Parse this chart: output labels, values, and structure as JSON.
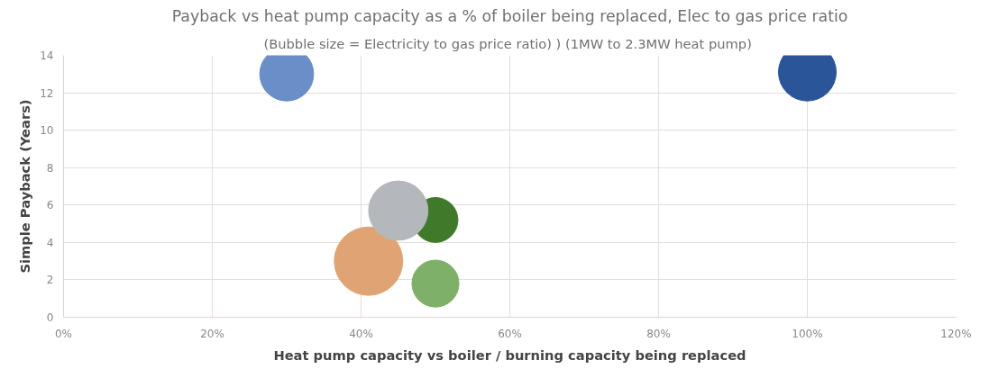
{
  "chart_data": {
    "type": "bubble",
    "title": "Payback vs heat pump capacity as a % of boiler being replaced, Elec to gas price ratio",
    "subtitle": "(Bubble size = Electricity to gas price ratio) )  (1MW to 2.3MW heat pump)",
    "xlabel": "Heat pump capacity vs boiler / burning capacity being replaced",
    "ylabel": "Simple Payback (Years)",
    "x": [
      0.3,
      1.0,
      0.41,
      0.5,
      0.5,
      0.45
    ],
    "values": [
      13.0,
      13.1,
      3.0,
      1.8,
      5.2,
      5.7
    ],
    "sizes": [
      0.62,
      0.71,
      1,
      0.47,
      0.43,
      0.75
    ],
    "colors": [
      "#6a8fc8",
      "#2a5599",
      "#e0a474",
      "#7fb069",
      "#3f7a2a",
      "#b4b8bc"
    ],
    "xlim": [
      0,
      1.2
    ],
    "xticks": [
      {
        "value": 0,
        "label": "0%"
      },
      {
        "value": 0.2,
        "label": "20%"
      },
      {
        "value": 0.4,
        "label": "40%"
      },
      {
        "value": 0.6,
        "label": "60%"
      },
      {
        "value": 0.8,
        "label": "80%"
      },
      {
        "value": 1.0,
        "label": "100%"
      },
      {
        "value": 1.2,
        "label": "120%"
      }
    ],
    "ylim": [
      0,
      14
    ],
    "yticks": [
      0,
      2,
      4,
      6,
      8,
      10,
      12,
      14
    ],
    "grid": true
  }
}
